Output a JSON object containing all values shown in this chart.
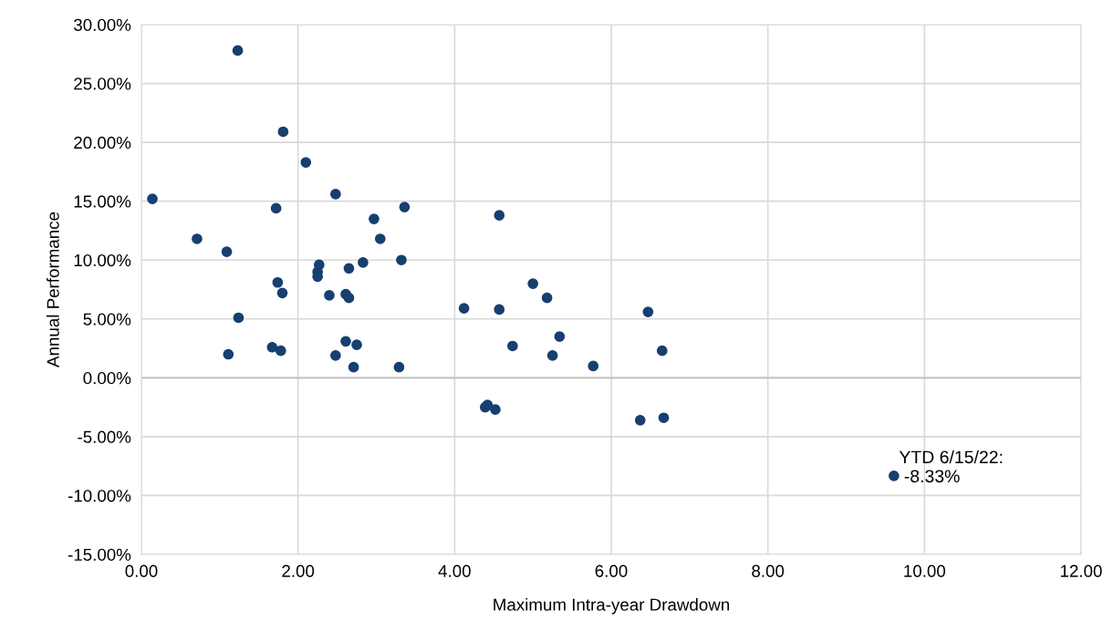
{
  "chart_data": {
    "type": "scatter",
    "xlabel": "Maximum Intra-year Drawdown",
    "ylabel": "Annual Performance",
    "x": [
      1.23,
      1.81,
      2.1,
      0.14,
      2.48,
      1.72,
      2.97,
      3.36,
      4.57,
      0.71,
      1.09,
      3.05,
      2.27,
      2.25,
      2.25,
      2.65,
      2.83,
      3.32,
      1.74,
      1.8,
      2.4,
      2.61,
      2.65,
      5.0,
      5.18,
      4.12,
      4.57,
      1.24,
      6.47,
      5.34,
      1.11,
      1.67,
      1.78,
      2.48,
      2.61,
      2.75,
      2.71,
      3.29,
      4.74,
      5.25,
      5.77,
      6.65,
      4.39,
      4.42,
      4.52,
      6.37,
      6.67,
      9.61
    ],
    "series": [
      {
        "color": "#173f6f",
        "values": [
          27.8,
          20.9,
          18.3,
          15.2,
          15.6,
          14.4,
          13.5,
          14.5,
          13.8,
          11.8,
          10.7,
          11.8,
          9.6,
          9.0,
          8.6,
          9.3,
          9.8,
          10.0,
          8.1,
          7.2,
          7.0,
          7.1,
          6.8,
          8.0,
          6.8,
          5.9,
          5.8,
          5.1,
          5.6,
          3.5,
          2.0,
          2.6,
          2.3,
          1.9,
          3.1,
          2.8,
          0.9,
          0.9,
          2.7,
          1.9,
          1.0,
          2.3,
          -2.5,
          -2.3,
          -2.7,
          -3.6,
          -3.4,
          -8.33
        ]
      }
    ],
    "annotations": [
      {
        "text": "YTD 6/15/22:\n -8.33%",
        "x": 9.61,
        "y": -8.33
      }
    ],
    "xlim": [
      0,
      12
    ],
    "xticks": [
      {
        "value": 0,
        "label": "0.00"
      },
      {
        "value": 2,
        "label": "2.00"
      },
      {
        "value": 4,
        "label": "4.00"
      },
      {
        "value": 6,
        "label": "6.00"
      },
      {
        "value": 8,
        "label": "8.00"
      },
      {
        "value": 10,
        "label": "10.00"
      },
      {
        "value": 12,
        "label": "12.00"
      }
    ],
    "ylim": [
      -15,
      30
    ],
    "yticks": [
      {
        "value": -15,
        "label": "-15.00%"
      },
      {
        "value": -10,
        "label": "-10.00%"
      },
      {
        "value": -5,
        "label": "-5.00%"
      },
      {
        "value": 0,
        "label": "0.00%"
      },
      {
        "value": 5,
        "label": "5.00%"
      },
      {
        "value": 10,
        "label": "10.00%"
      },
      {
        "value": 15,
        "label": "15.00%"
      },
      {
        "value": 20,
        "label": "20.00%"
      },
      {
        "value": 25,
        "label": "25.00%"
      },
      {
        "value": 30,
        "label": "30.00%"
      }
    ],
    "grid": true,
    "marker": "circle"
  }
}
